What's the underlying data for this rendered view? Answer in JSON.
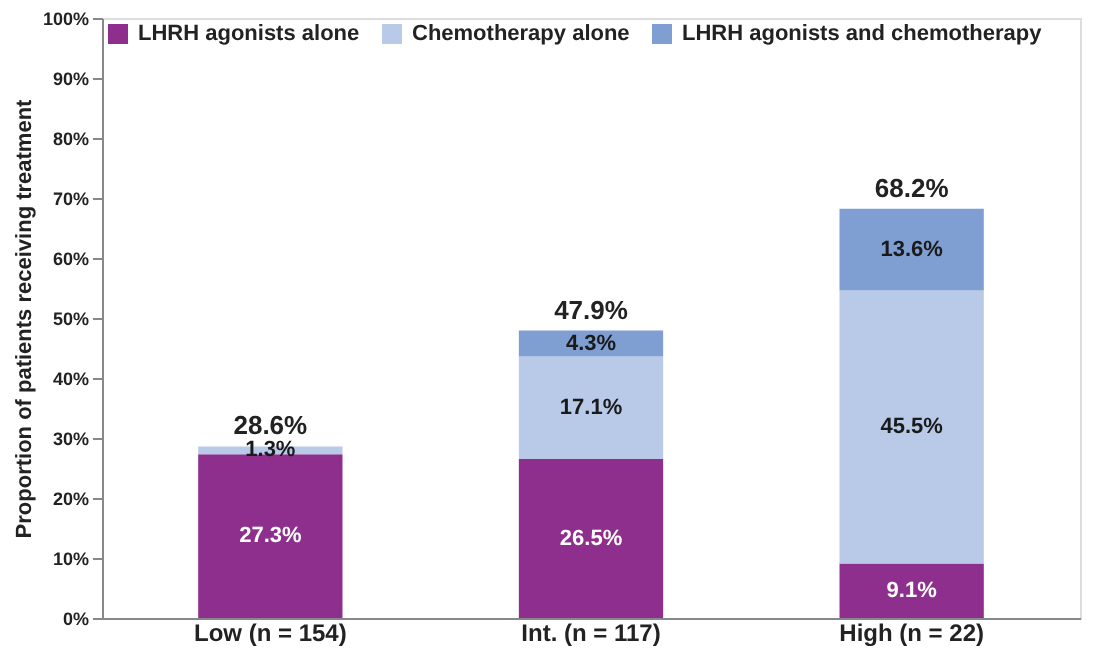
{
  "chart_data": {
    "type": "bar",
    "stacked": true,
    "ylabel": "Proportion of patients receiving treatment",
    "categories": [
      "Low (n = 154)",
      "Int. (n = 117)",
      "High (n = 22)"
    ],
    "series": [
      {
        "name": "LHRH agonists alone",
        "color": "#8e2f8e",
        "values": [
          27.3,
          26.5,
          9.1
        ],
        "value_labels": [
          "27.3%",
          "26.5%",
          "9.1%"
        ]
      },
      {
        "name": "Chemotherapy alone",
        "color": "#b9c9e8",
        "values": [
          1.3,
          17.1,
          45.5
        ],
        "value_labels": [
          "1.3%",
          "17.1%",
          "45.5%"
        ]
      },
      {
        "name": "LHRH agonists and chemotherapy",
        "color": "#7f9ed2",
        "values": [
          null,
          4.3,
          13.6
        ],
        "value_labels": [
          null,
          "4.3%",
          "13.6%"
        ]
      }
    ],
    "totals": [
      "28.6%",
      "47.9%",
      "68.2%"
    ],
    "ylim": [
      0,
      100
    ],
    "yticks": [
      {
        "value": 0,
        "label": "0%"
      },
      {
        "value": 10,
        "label": "10%"
      },
      {
        "value": 20,
        "label": "20%"
      },
      {
        "value": 30,
        "label": "30%"
      },
      {
        "value": 40,
        "label": "40%"
      },
      {
        "value": 50,
        "label": "50%"
      },
      {
        "value": 60,
        "label": "60%"
      },
      {
        "value": 70,
        "label": "70%"
      },
      {
        "value": 80,
        "label": "80%"
      },
      {
        "value": 90,
        "label": "90%"
      },
      {
        "value": 100,
        "label": "100%"
      }
    ],
    "grid": false,
    "legend": "top left"
  }
}
